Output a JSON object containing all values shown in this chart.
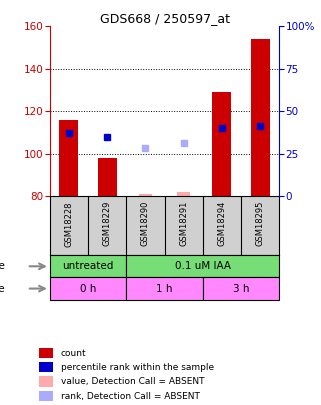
{
  "title": "GDS668 / 250597_at",
  "samples": [
    "GSM18228",
    "GSM18229",
    "GSM18290",
    "GSM18291",
    "GSM18294",
    "GSM18295"
  ],
  "bar_values": [
    116,
    98,
    null,
    null,
    129,
    154
  ],
  "bar_bottom": 80,
  "bar_color": "#cc0000",
  "absent_bar_values": [
    null,
    null,
    81,
    82,
    null,
    null
  ],
  "absent_bar_color": "#ffaaaa",
  "blue_dot_values": [
    110,
    108,
    null,
    null,
    112,
    113
  ],
  "blue_dot_color": "#0000cc",
  "absent_dot_values": [
    null,
    null,
    103,
    105,
    null,
    null
  ],
  "absent_dot_color": "#aaaaff",
  "ylim_left": [
    80,
    160
  ],
  "ylim_right": [
    0,
    100
  ],
  "yticks_left": [
    80,
    100,
    120,
    140,
    160
  ],
  "yticks_right": [
    0,
    25,
    50,
    75,
    100
  ],
  "ytick_labels_right": [
    "0",
    "25",
    "50",
    "75",
    "100%"
  ],
  "left_axis_color": "#cc0000",
  "right_axis_color": "#0000cc",
  "sample_bg_color": "#d0d0d0",
  "dose_color": "#77dd77",
  "time_color": "#ff88ff",
  "background_color": "#ffffff",
  "legend_items": [
    {
      "label": "count",
      "color": "#cc0000"
    },
    {
      "label": "percentile rank within the sample",
      "color": "#0000cc"
    },
    {
      "label": "value, Detection Call = ABSENT",
      "color": "#ffaaaa"
    },
    {
      "label": "rank, Detection Call = ABSENT",
      "color": "#aaaaff"
    }
  ]
}
